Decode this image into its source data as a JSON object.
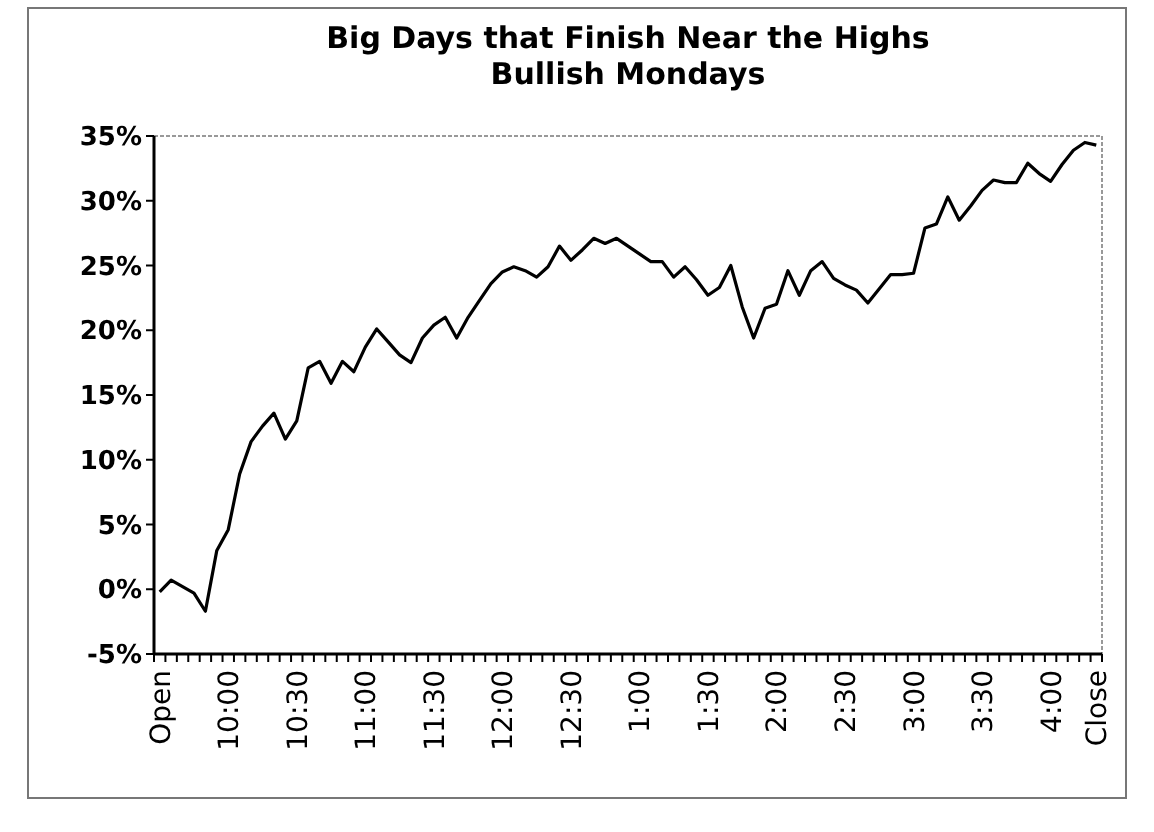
{
  "chart_data": {
    "type": "line",
    "title": "Big Days that Finish Near the Highs",
    "subtitle": "Bullish Mondays",
    "categories": [
      "Open",
      null,
      null,
      null,
      null,
      null,
      "10:00",
      null,
      null,
      null,
      null,
      null,
      "10:30",
      null,
      null,
      null,
      null,
      null,
      "11:00",
      null,
      null,
      null,
      null,
      null,
      "11:30",
      null,
      null,
      null,
      null,
      null,
      "12:00",
      null,
      null,
      null,
      null,
      null,
      "12:30",
      null,
      null,
      null,
      null,
      null,
      "1:00",
      null,
      null,
      null,
      null,
      null,
      "1:30",
      null,
      null,
      null,
      null,
      null,
      "2:00",
      null,
      null,
      null,
      null,
      null,
      "2:30",
      null,
      null,
      null,
      null,
      null,
      "3:00",
      null,
      null,
      null,
      null,
      null,
      "3:30",
      null,
      null,
      null,
      null,
      null,
      "4:00",
      null,
      null,
      null,
      "Close"
    ],
    "series": [
      {
        "color": "#000000",
        "values": [
          -0.2,
          0.7,
          0.2,
          -0.3,
          -1.7,
          3.0,
          4.6,
          8.9,
          11.4,
          12.6,
          13.6,
          11.6,
          13.0,
          17.1,
          17.6,
          15.9,
          17.6,
          16.8,
          18.7,
          20.1,
          19.1,
          18.1,
          17.5,
          19.4,
          20.4,
          21.0,
          19.4,
          21.0,
          22.3,
          23.6,
          24.5,
          24.9,
          24.6,
          24.1,
          24.9,
          26.5,
          25.4,
          26.2,
          27.1,
          26.7,
          27.1,
          26.5,
          25.9,
          25.3,
          25.3,
          24.1,
          24.9,
          23.9,
          22.7,
          23.3,
          25.0,
          21.8,
          19.4,
          21.7,
          22.0,
          24.6,
          22.7,
          24.6,
          25.3,
          24.0,
          23.5,
          23.1,
          22.1,
          23.2,
          24.3,
          24.3,
          24.4,
          27.9,
          28.2,
          30.3,
          28.5,
          29.6,
          30.8,
          31.6,
          31.4,
          31.4,
          32.9,
          32.1,
          31.5,
          32.8,
          33.9,
          34.5,
          34.3
        ]
      }
    ],
    "ylim": [
      -5,
      35
    ],
    "yticks": [
      {
        "value": -5,
        "label": "-5%"
      },
      {
        "value": 0,
        "label": "0%"
      },
      {
        "value": 5,
        "label": "5%"
      },
      {
        "value": 10,
        "label": "10%"
      },
      {
        "value": 15,
        "label": "15%"
      },
      {
        "value": 20,
        "label": "20%"
      },
      {
        "value": 25,
        "label": "25%"
      },
      {
        "value": 30,
        "label": "30%"
      },
      {
        "value": 35,
        "label": "35%"
      }
    ],
    "grid": false
  }
}
